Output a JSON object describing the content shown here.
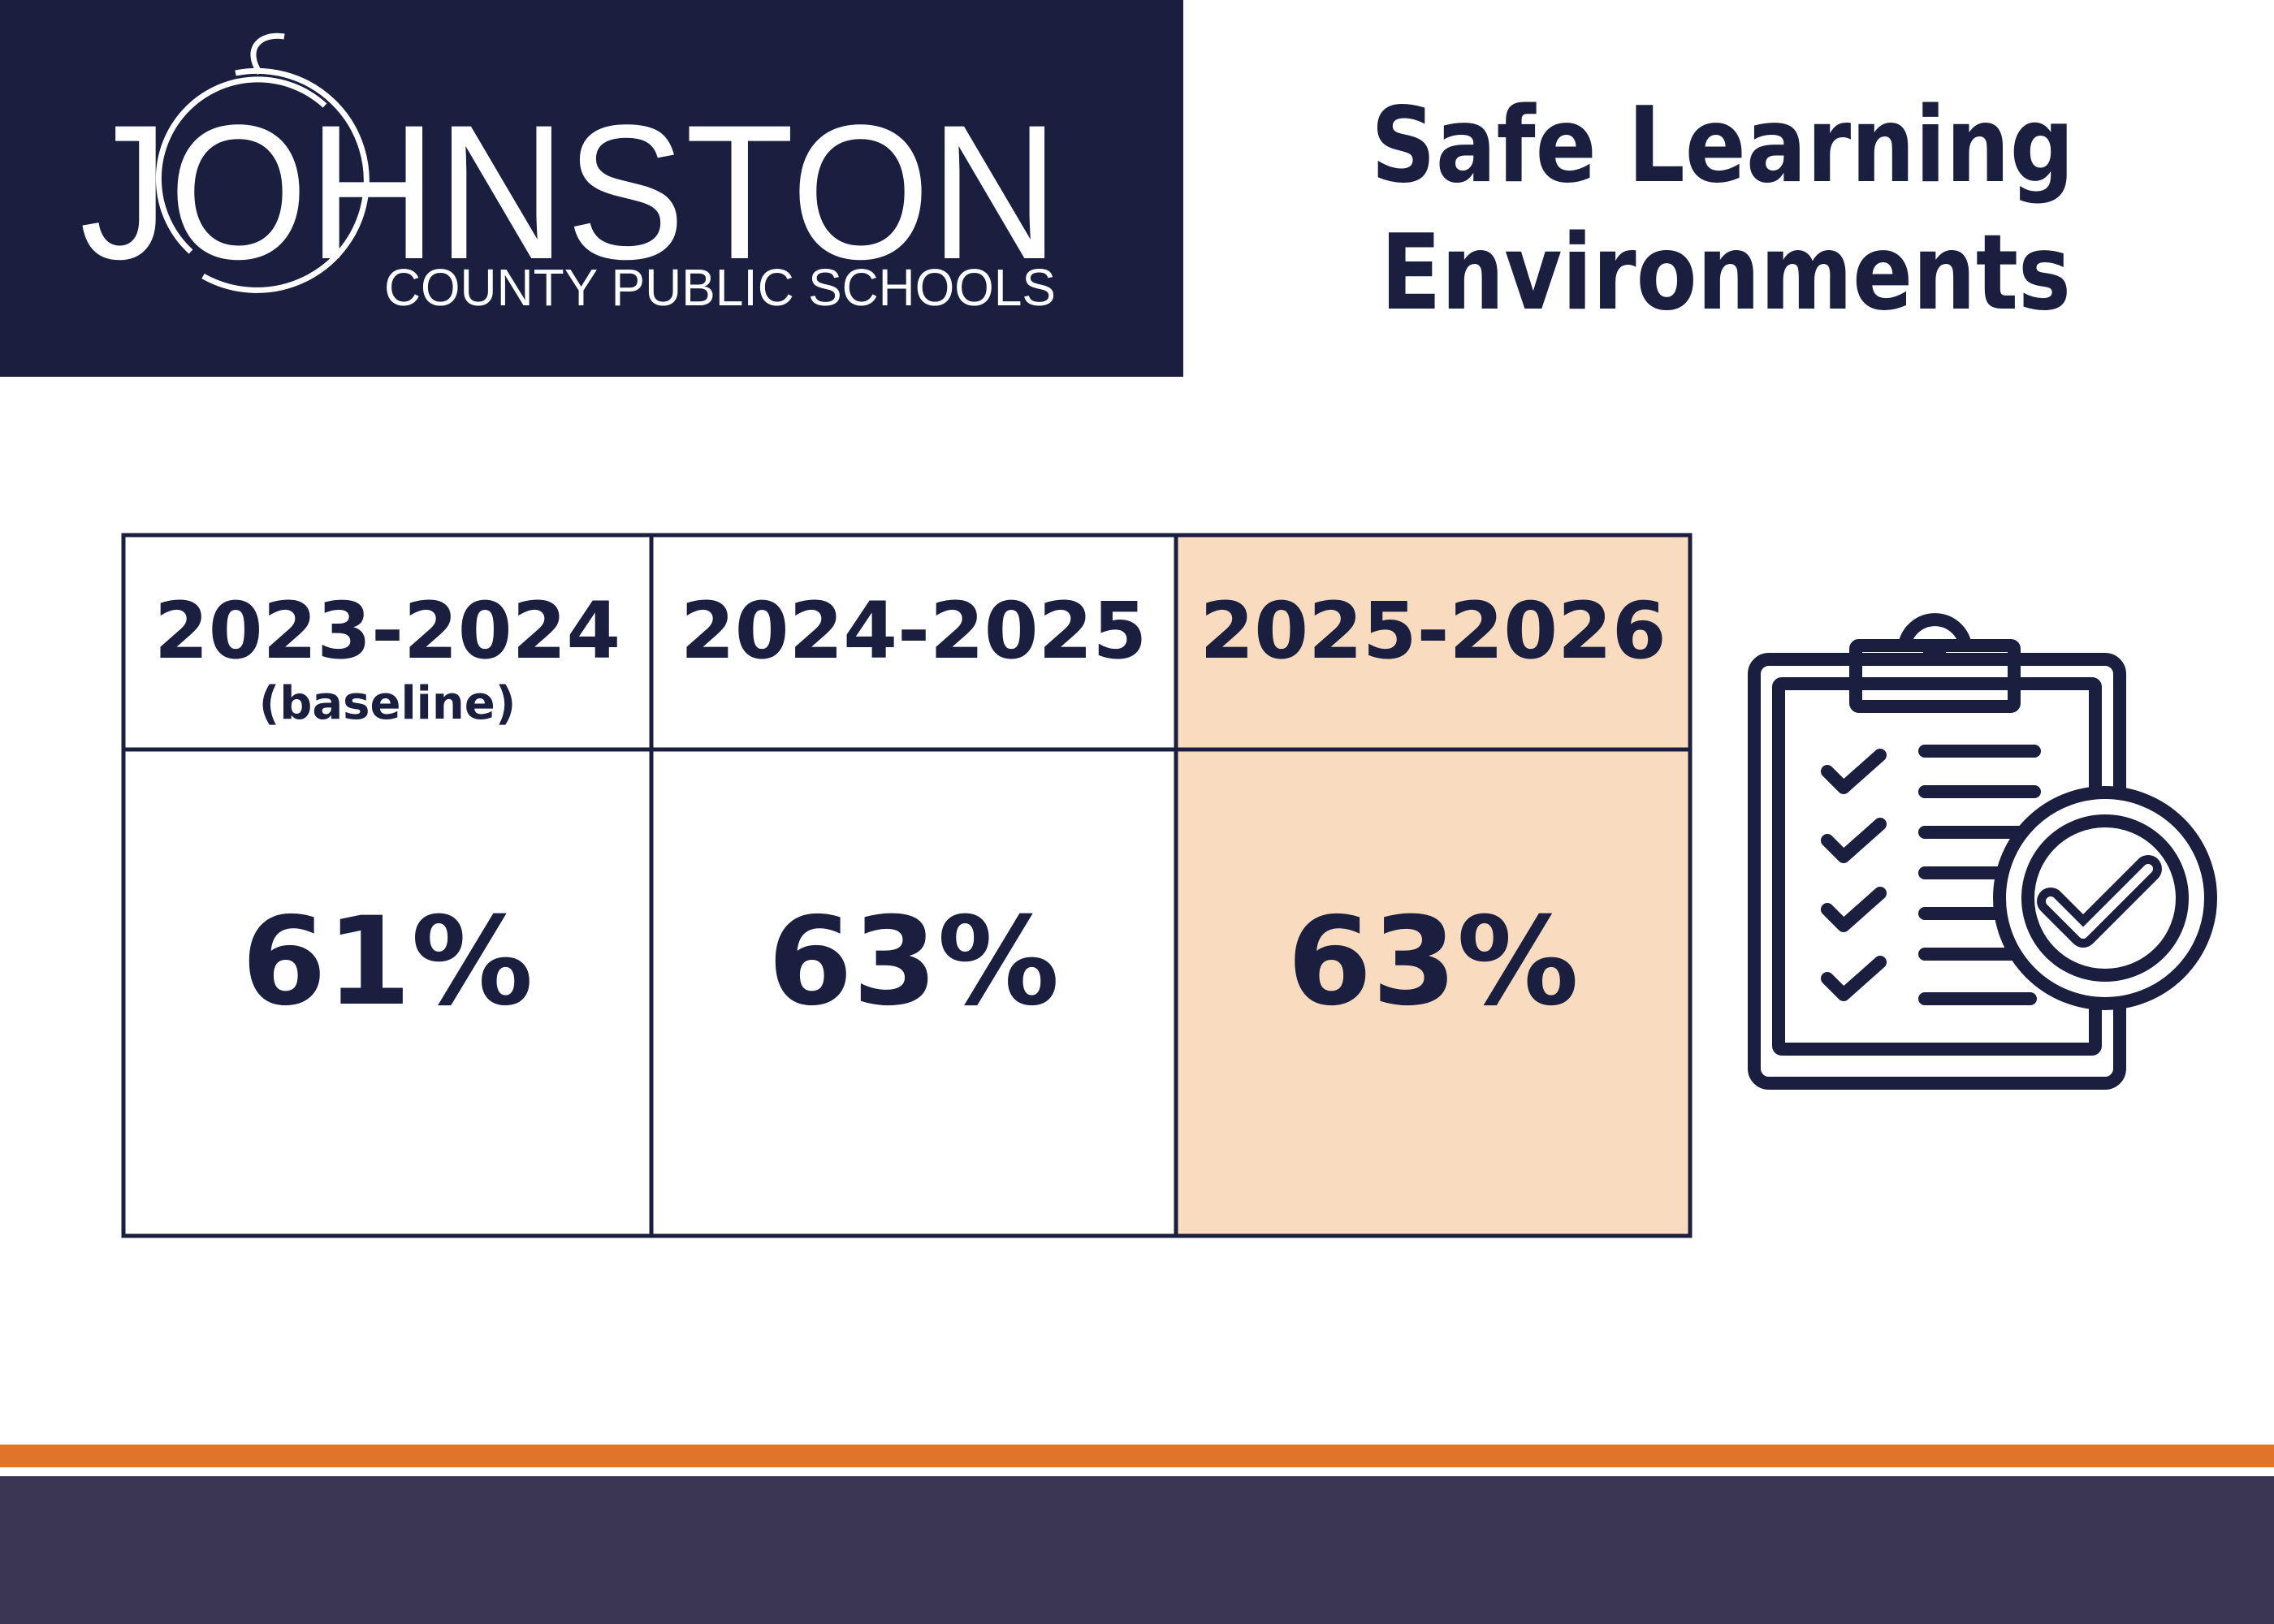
{
  "header": {
    "wordmark": "JOHNSTON",
    "subtitle": "COUNTY PUBLIC SCHOOLS"
  },
  "title_lines": [
    "Safe Learning",
    "Environments"
  ],
  "table": {
    "headers": [
      {
        "year": "2023-2024",
        "note": "(baseline)"
      },
      {
        "year": "2024-2025"
      },
      {
        "year": "2025-2026"
      }
    ],
    "rows": [
      [
        "61%",
        "63%",
        "63%"
      ]
    ]
  }
}
